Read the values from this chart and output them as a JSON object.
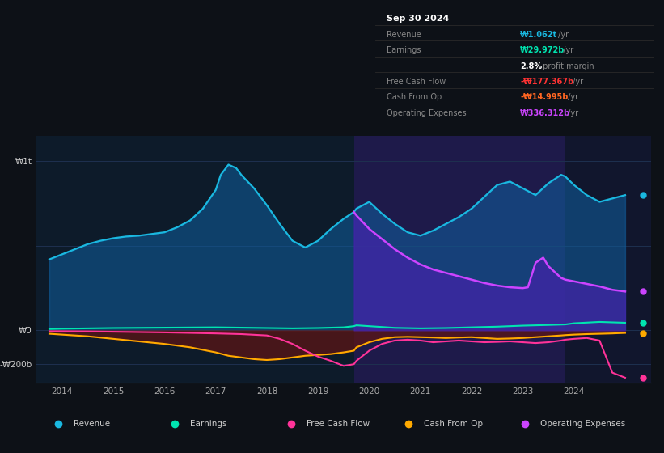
{
  "bg_color": "#0d1117",
  "plot_bg_color": "#0d1b2a",
  "highlight_bg_color": "#1e1a4a",
  "grid_color": "#1e3050",
  "ylabel_top": "₩1t",
  "ylabel_zero": "₩0",
  "ylabel_neg": "-₩200b",
  "xlim": [
    2013.5,
    2025.5
  ],
  "ylim": [
    -310,
    1150
  ],
  "highlight_start": 2019.7,
  "highlight_end": 2025.5,
  "highlight_2_start": 2023.83,
  "highlight_2_end": 2025.5,
  "legend_items": [
    {
      "label": "Revenue",
      "color": "#1ab8e0"
    },
    {
      "label": "Earnings",
      "color": "#00e5b0"
    },
    {
      "label": "Free Cash Flow",
      "color": "#ff3399"
    },
    {
      "label": "Cash From Op",
      "color": "#ffaa00"
    },
    {
      "label": "Operating Expenses",
      "color": "#cc44ff"
    }
  ],
  "revenue_x": [
    2013.75,
    2014.0,
    2014.25,
    2014.5,
    2014.75,
    2015.0,
    2015.25,
    2015.5,
    2015.75,
    2016.0,
    2016.25,
    2016.5,
    2016.75,
    2017.0,
    2017.1,
    2017.25,
    2017.4,
    2017.5,
    2017.75,
    2018.0,
    2018.25,
    2018.5,
    2018.75,
    2019.0,
    2019.25,
    2019.5,
    2019.7,
    2019.75,
    2020.0,
    2020.25,
    2020.5,
    2020.75,
    2021.0,
    2021.25,
    2021.5,
    2021.75,
    2022.0,
    2022.25,
    2022.5,
    2022.75,
    2023.0,
    2023.25,
    2023.5,
    2023.75,
    2023.83,
    2024.0,
    2024.25,
    2024.5,
    2024.75,
    2025.0
  ],
  "revenue_y": [
    420,
    450,
    480,
    510,
    530,
    545,
    555,
    560,
    570,
    580,
    610,
    650,
    720,
    830,
    920,
    980,
    960,
    920,
    840,
    740,
    630,
    530,
    490,
    530,
    600,
    660,
    700,
    720,
    760,
    690,
    630,
    580,
    560,
    590,
    630,
    670,
    720,
    790,
    860,
    880,
    840,
    800,
    870,
    920,
    910,
    860,
    800,
    760,
    780,
    800
  ],
  "earnings_x": [
    2013.75,
    2014.0,
    2014.5,
    2015.0,
    2015.5,
    2016.0,
    2016.5,
    2017.0,
    2017.5,
    2018.0,
    2018.5,
    2019.0,
    2019.5,
    2019.7,
    2019.75,
    2020.0,
    2020.5,
    2021.0,
    2021.5,
    2022.0,
    2022.5,
    2023.0,
    2023.5,
    2023.83,
    2024.0,
    2024.5,
    2025.0
  ],
  "earnings_y": [
    8,
    10,
    12,
    14,
    15,
    16,
    17,
    18,
    16,
    14,
    12,
    14,
    18,
    25,
    30,
    25,
    15,
    12,
    14,
    18,
    22,
    28,
    32,
    35,
    42,
    50,
    45
  ],
  "fcf_x": [
    2013.75,
    2014.0,
    2014.5,
    2015.0,
    2015.5,
    2016.0,
    2016.5,
    2017.0,
    2017.5,
    2018.0,
    2018.25,
    2018.5,
    2018.75,
    2019.0,
    2019.25,
    2019.5,
    2019.7,
    2019.75,
    2020.0,
    2020.25,
    2020.5,
    2020.75,
    2021.0,
    2021.25,
    2021.5,
    2021.75,
    2022.0,
    2022.25,
    2022.5,
    2022.75,
    2023.0,
    2023.25,
    2023.5,
    2023.75,
    2023.83,
    2024.0,
    2024.25,
    2024.5,
    2024.75,
    2025.0
  ],
  "fcf_y": [
    -5,
    -5,
    -6,
    -8,
    -10,
    -12,
    -15,
    -18,
    -22,
    -30,
    -50,
    -80,
    -120,
    -155,
    -180,
    -210,
    -200,
    -180,
    -120,
    -80,
    -60,
    -55,
    -60,
    -70,
    -65,
    -60,
    -65,
    -70,
    -68,
    -65,
    -70,
    -75,
    -70,
    -60,
    -55,
    -50,
    -45,
    -60,
    -250,
    -280
  ],
  "cfo_x": [
    2013.75,
    2014.0,
    2014.5,
    2015.0,
    2015.5,
    2016.0,
    2016.5,
    2017.0,
    2017.25,
    2017.5,
    2017.75,
    2018.0,
    2018.25,
    2018.5,
    2018.75,
    2019.0,
    2019.25,
    2019.5,
    2019.7,
    2019.75,
    2020.0,
    2020.25,
    2020.5,
    2020.75,
    2021.0,
    2021.25,
    2021.5,
    2021.75,
    2022.0,
    2022.25,
    2022.5,
    2022.75,
    2023.0,
    2023.25,
    2023.5,
    2023.75,
    2023.83,
    2024.0,
    2024.25,
    2024.5,
    2024.75,
    2025.0
  ],
  "cfo_y": [
    -20,
    -25,
    -35,
    -50,
    -65,
    -80,
    -100,
    -130,
    -150,
    -160,
    -170,
    -175,
    -170,
    -160,
    -150,
    -145,
    -140,
    -130,
    -120,
    -100,
    -70,
    -50,
    -40,
    -38,
    -40,
    -42,
    -45,
    -42,
    -40,
    -45,
    -50,
    -48,
    -45,
    -40,
    -35,
    -30,
    -28,
    -25,
    -22,
    -20,
    -18,
    -15
  ],
  "opex_x": [
    2019.7,
    2019.75,
    2020.0,
    2020.25,
    2020.5,
    2020.75,
    2021.0,
    2021.25,
    2021.5,
    2021.75,
    2022.0,
    2022.25,
    2022.5,
    2022.75,
    2023.0,
    2023.1,
    2023.25,
    2023.4,
    2023.5,
    2023.75,
    2023.83,
    2024.0,
    2024.25,
    2024.5,
    2024.75,
    2025.0
  ],
  "opex_y": [
    700,
    680,
    600,
    540,
    480,
    430,
    390,
    360,
    340,
    320,
    300,
    280,
    265,
    255,
    250,
    255,
    400,
    430,
    380,
    310,
    300,
    290,
    275,
    260,
    240,
    230
  ],
  "title_text": "Sep 30 2024",
  "info_rows": [
    {
      "label": "Revenue",
      "value": "₩1.062t",
      "suffix": " /yr",
      "value_color": "#1ab8e0",
      "label_color": "#888888"
    },
    {
      "label": "Earnings",
      "value": "₩29.972b",
      "suffix": " /yr",
      "value_color": "#00e5b0",
      "label_color": "#888888"
    },
    {
      "label": "",
      "value": "2.8%",
      "suffix": " profit margin",
      "value_color": "#ffffff",
      "suffix_color": "#888888",
      "label_color": "#888888"
    },
    {
      "label": "Free Cash Flow",
      "value": "-₩177.367b",
      "suffix": " /yr",
      "value_color": "#ff3333",
      "label_color": "#888888"
    },
    {
      "label": "Cash From Op",
      "value": "-₩14.995b",
      "suffix": " /yr",
      "value_color": "#ff6622",
      "label_color": "#888888"
    },
    {
      "label": "Operating Expenses",
      "value": "₩336.312b",
      "suffix": " /yr",
      "value_color": "#cc44ff",
      "label_color": "#888888"
    }
  ]
}
